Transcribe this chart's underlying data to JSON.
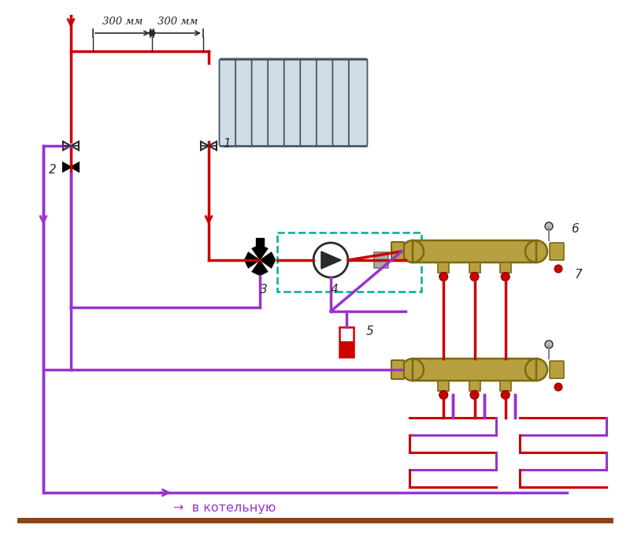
{
  "bg_color": "#ffffff",
  "red_color": "#cc0000",
  "purple_color": "#9933cc",
  "brass_color": "#b8a040",
  "brass_dark": "#7a6a10",
  "dark_gray": "#2a2a2a",
  "teal_dashed": "#00aa99",
  "radiator_color": "#d0dde8",
  "title_text": "→  в котельную",
  "label_300_1": "300 мм",
  "label_300_2": "300 мм",
  "label_1": "1",
  "label_2": "2",
  "label_3": "3",
  "label_4": "4",
  "label_5": "5",
  "label_6": "6",
  "label_7": "7"
}
